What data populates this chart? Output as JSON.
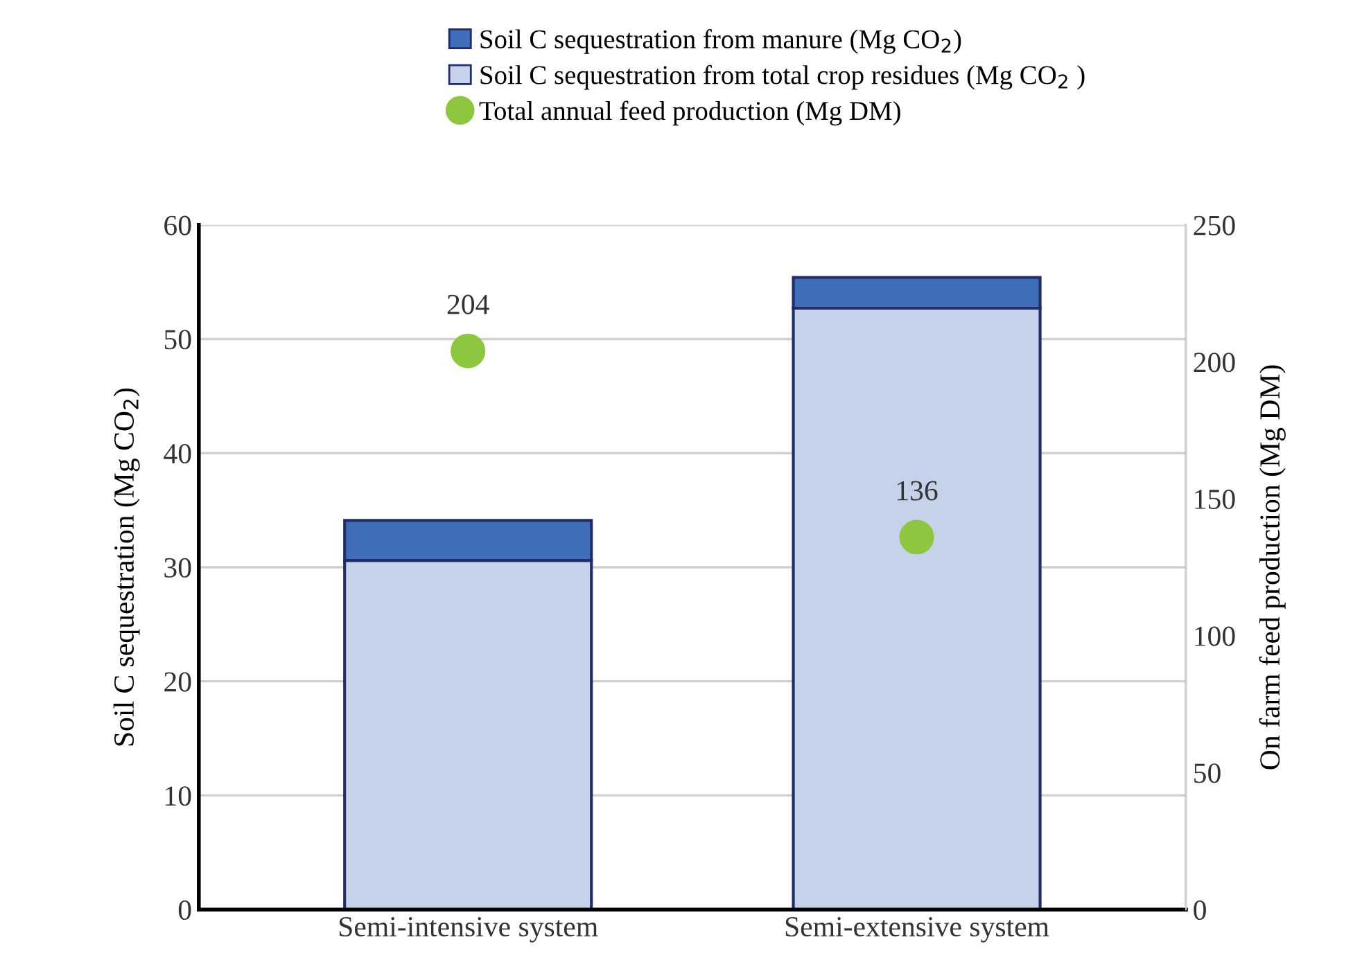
{
  "chart_data": {
    "type": "bar",
    "stacked": true,
    "categories": [
      "Semi-intensive system",
      "Semi-extensive system"
    ],
    "ylabel": "Soil C sequestration (Mg CO$_{2}$)",
    "y2label": "On farm feed production (Mg DM)",
    "ylim": [
      0,
      60
    ],
    "yticks": [
      0,
      10,
      20,
      30,
      40,
      50,
      60
    ],
    "y2lim": [
      0,
      250
    ],
    "y2ticks": [
      0,
      50,
      100,
      150,
      200,
      250
    ],
    "grid": "y",
    "legend": "top",
    "series": [
      {
        "name": "Soil C sequestration from total crop residues (Mg CO$_{2}$ )",
        "color": "#c6d2ea",
        "values": [
          30.6,
          52.7
        ]
      },
      {
        "name": "Soil C sequestration from manure (Mg CO$_{2}$)",
        "color": "#3f6db8",
        "values": [
          3.5,
          2.7
        ]
      },
      {
        "name": "Total annual feed production (Mg DM)",
        "type": "scatter",
        "axis": "y2",
        "color": "#8dc63f",
        "marker": "circle",
        "values": [
          204,
          136
        ],
        "value_labels": [
          "204",
          "136"
        ]
      }
    ]
  }
}
